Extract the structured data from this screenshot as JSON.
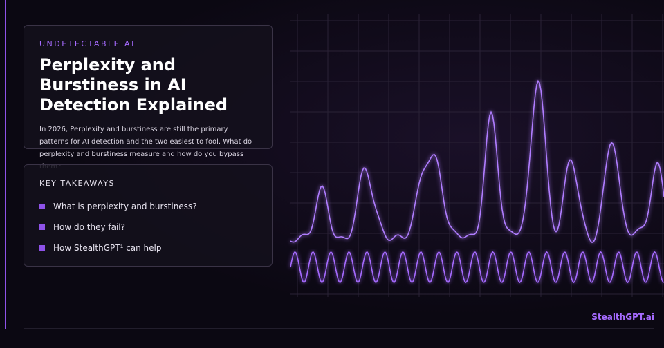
{
  "intro": {
    "eyebrow": "UNDETECTABLE AI",
    "title": "Perplexity and Burstiness in AI Detection Explained",
    "description": "In 2026, Perplexity and burstiness are still the primary patterns for AI detection and the two easiest to fool. What do perplexity and burstiness measure and how do you bypass them?"
  },
  "takeaways": {
    "heading": "KEY TAKEAWAYS",
    "items": [
      "What is perplexity and burstiness?",
      "How do they fail?",
      "How StealthGPT¹ can help"
    ]
  },
  "brand": "StealthGPT.ai"
}
